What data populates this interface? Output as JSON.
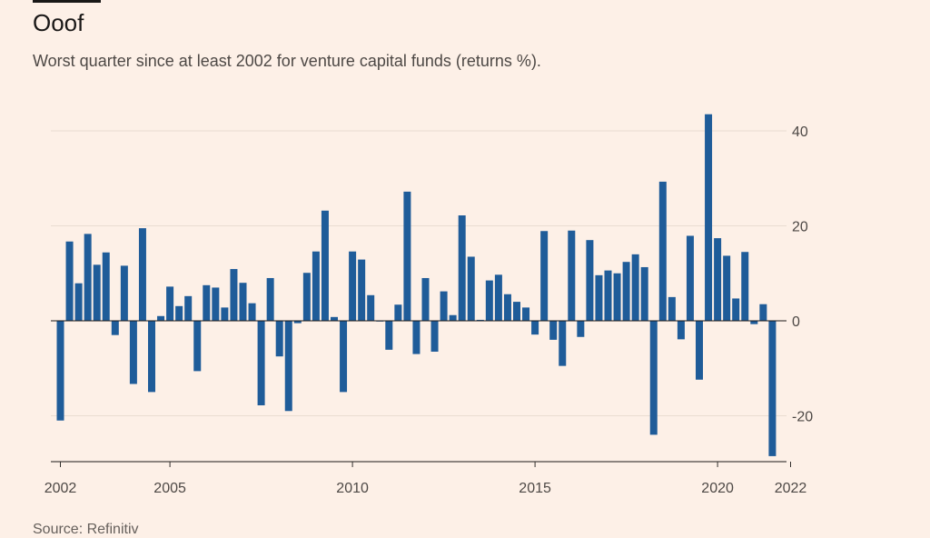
{
  "chart_data": {
    "type": "bar",
    "title": "Ooof",
    "subtitle": "Worst quarter since at least 2002 for venture capital funds (returns %).",
    "source": "Source: Refinitiv",
    "xlabel": "",
    "ylabel": "",
    "ylim": [
      -30,
      45
    ],
    "yticks": [
      40,
      20,
      0,
      -20
    ],
    "ytick_labels": [
      "40",
      "20",
      "0",
      "-20"
    ],
    "x_start_year": 2002,
    "xticks": [
      2002,
      2005,
      2010,
      2015,
      2020,
      2022
    ],
    "xtick_labels": [
      "2002",
      "2005",
      "2010",
      "2015",
      "2020",
      "2022"
    ],
    "grid": true,
    "y_axis_position": "right",
    "bar_color": "#1f5c99",
    "values": [
      -21,
      16.7,
      7.9,
      18.3,
      11.8,
      14.4,
      -3,
      11.6,
      -13.3,
      19.5,
      -15,
      1,
      7.2,
      3.1,
      5.2,
      -10.6,
      7.5,
      7,
      2.8,
      10.9,
      8,
      3.7,
      -17.8,
      9,
      -7.5,
      -19,
      -0.5,
      10.1,
      14.6,
      23.2,
      0.8,
      -15,
      14.6,
      12.9,
      5.4,
      0,
      -6.1,
      3.4,
      27.2,
      -7,
      9,
      -6.5,
      6.2,
      1.2,
      22.2,
      13.5,
      0.2,
      8.5,
      9.7,
      5.6,
      4,
      2.8,
      -2.9,
      18.9,
      -4,
      -9.5,
      19,
      -3.4,
      17,
      9.6,
      10.6,
      10,
      12.4,
      14,
      11.3,
      -24,
      29.3,
      5,
      -3.9,
      17.9,
      -12.4,
      43.5,
      17.4,
      13.7,
      4.7,
      14.5,
      -0.7,
      3.5,
      -28.5
    ]
  }
}
